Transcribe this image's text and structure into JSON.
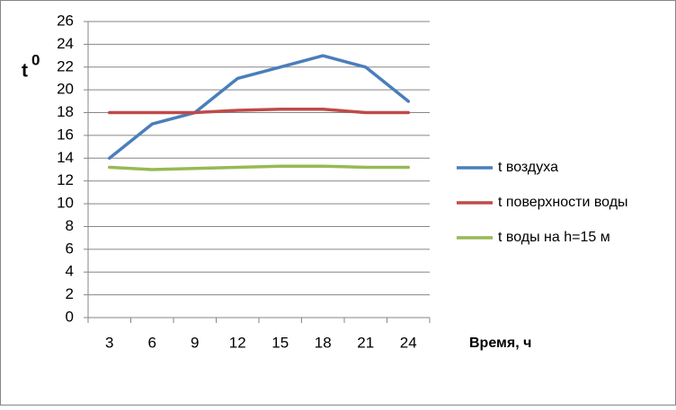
{
  "chart_data": {
    "type": "line",
    "ylabel": "t",
    "ylabel_superscript": "0",
    "xlabel": "Время, ч",
    "categories": [
      "3",
      "6",
      "9",
      "12",
      "15",
      "18",
      "21",
      "24"
    ],
    "series": [
      {
        "name": "t воздуха",
        "color": "#4a7ebb",
        "values": [
          14,
          17,
          18,
          21,
          22,
          23,
          22,
          19
        ]
      },
      {
        "name": "t поверхности воды",
        "color": "#be4b48",
        "values": [
          18,
          18,
          18,
          18.2,
          18.3,
          18.3,
          18,
          18
        ]
      },
      {
        "name": "t воды на h=15 м",
        "color": "#98b954",
        "values": [
          13.2,
          13,
          13.1,
          13.2,
          13.3,
          13.3,
          13.2,
          13.2
        ]
      }
    ],
    "ylim": [
      0,
      26
    ],
    "yticks": [
      0,
      2,
      4,
      6,
      8,
      10,
      12,
      14,
      16,
      18,
      20,
      22,
      24,
      26
    ],
    "grid": true,
    "legend": "right"
  }
}
